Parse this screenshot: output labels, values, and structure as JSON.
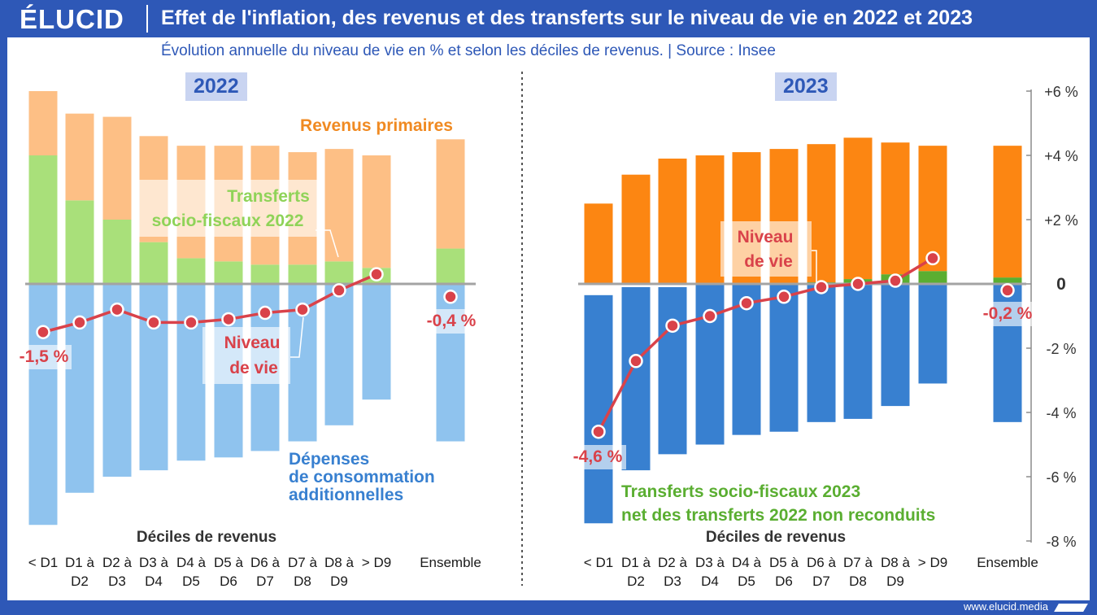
{
  "header": {
    "logo": "ÉLUCID",
    "title": "Effet de l'inflation, des revenus et des transferts sur le niveau de vie en 2022 et 2023",
    "subtitle": "Évolution annuelle du niveau de vie en % et selon les déciles de revenus.  |  Source : Insee",
    "footer_url": "www.elucid.media"
  },
  "colors": {
    "brand": "#2e58b7",
    "primary_2022": "#fdbf85",
    "transfers_2022": "#a9e07a",
    "consumption_2022": "#8fc3ee",
    "primary_2023": "#fc8612",
    "transfers_2023": "#5aae31",
    "consumption_2023": "#3880d0",
    "niveau_de_vie": "#d9424a"
  },
  "chart_data": [
    {
      "type": "bar",
      "year_label": "2022",
      "stacked": true,
      "categories": [
        [
          "< D1",
          ""
        ],
        [
          "D1 à",
          "D2"
        ],
        [
          "D2 à",
          "D3"
        ],
        [
          "D3 à",
          "D4"
        ],
        [
          "D4 à",
          "D5"
        ],
        [
          "D5 à",
          "D6"
        ],
        [
          "D6 à",
          "D7"
        ],
        [
          "D7 à",
          "D8"
        ],
        [
          "D8 à",
          "D9"
        ],
        [
          "> D9",
          ""
        ],
        [
          "Ensemble",
          ""
        ]
      ],
      "xlabel": "Déciles de revenus",
      "ylim": [
        -8,
        6
      ],
      "series": [
        {
          "name": "Revenus primaires",
          "values": [
            2.0,
            2.7,
            3.2,
            3.3,
            3.5,
            3.6,
            3.7,
            3.5,
            3.5,
            3.5,
            3.4
          ]
        },
        {
          "name": "Transferts socio-fiscaux 2022",
          "values": [
            4.0,
            2.6,
            2.0,
            1.3,
            0.8,
            0.7,
            0.6,
            0.6,
            0.7,
            0.5,
            1.1
          ]
        },
        {
          "name": "Dépenses de consommation additionnelles",
          "values": [
            -7.5,
            -6.5,
            -6.0,
            -5.8,
            -5.5,
            -5.4,
            -5.2,
            -4.9,
            -4.4,
            -3.6,
            -4.9
          ]
        },
        {
          "name": "Niveau de vie",
          "type": "line",
          "values": [
            -1.5,
            -1.2,
            -0.8,
            -1.2,
            -1.2,
            -1.1,
            -0.9,
            -0.8,
            -0.2,
            0.3,
            -0.4
          ]
        }
      ],
      "data_labels": [
        {
          "index": 0,
          "text": "-1,5 %"
        },
        {
          "index": 10,
          "text": "-0,4 %"
        }
      ],
      "annotations": {
        "primary": "Revenus primaires",
        "transfers": [
          "Transferts",
          "socio-fiscaux 2022"
        ],
        "niveau": [
          "Niveau",
          "de vie"
        ],
        "consumption": [
          "Dépenses",
          "de consommation",
          "additionnelles"
        ]
      }
    },
    {
      "type": "bar",
      "year_label": "2023",
      "stacked": true,
      "categories": [
        [
          "< D1",
          ""
        ],
        [
          "D1 à",
          "D2"
        ],
        [
          "D2 à",
          "D3"
        ],
        [
          "D3 à",
          "D4"
        ],
        [
          "D4 à",
          "D5"
        ],
        [
          "D5 à",
          "D6"
        ],
        [
          "D6 à",
          "D7"
        ],
        [
          "D7 à",
          "D8"
        ],
        [
          "D8 à",
          "D9"
        ],
        [
          "> D9",
          ""
        ],
        [
          "Ensemble",
          ""
        ]
      ],
      "xlabel": "Déciles de revenus",
      "ylim": [
        -8,
        6
      ],
      "yticks": [
        {
          "v": 6,
          "label": "+6 %"
        },
        {
          "v": 4,
          "label": "+4 %"
        },
        {
          "v": 2,
          "label": "+2 %"
        },
        {
          "v": 0,
          "label": "0"
        },
        {
          "v": -2,
          "label": "-2 %"
        },
        {
          "v": -4,
          "label": "-4 %"
        },
        {
          "v": -6,
          "label": "-6 %"
        },
        {
          "v": -8,
          "label": "-8 %"
        }
      ],
      "series": [
        {
          "name": "Revenus primaires",
          "values": [
            2.5,
            3.4,
            3.9,
            4.0,
            4.1,
            4.2,
            4.3,
            4.4,
            4.1,
            3.9,
            4.1
          ]
        },
        {
          "name": "Transferts socio-fiscaux 2023 net des transferts 2022 non reconduits",
          "values": [
            -0.35,
            -0.1,
            -0.1,
            0.0,
            0.0,
            0.0,
            0.05,
            0.15,
            0.3,
            0.4,
            0.2
          ]
        },
        {
          "name": "Dépenses de consommation additionnelles",
          "values": [
            -7.1,
            -5.7,
            -5.2,
            -5.0,
            -4.7,
            -4.6,
            -4.3,
            -4.2,
            -3.8,
            -3.1,
            -4.3
          ]
        },
        {
          "name": "Niveau de vie",
          "type": "line",
          "values": [
            -4.6,
            -2.4,
            -1.3,
            -1.0,
            -0.6,
            -0.4,
            -0.1,
            0.0,
            0.1,
            0.8,
            -0.2
          ]
        }
      ],
      "data_labels": [
        {
          "index": 0,
          "text": "-4,6 %"
        },
        {
          "index": 10,
          "text": "-0,2 %"
        }
      ],
      "annotations": {
        "niveau": [
          "Niveau",
          "de vie"
        ],
        "transfers": [
          "Transferts socio-fiscaux 2023",
          "net des transferts 2022 non reconduits"
        ]
      }
    }
  ]
}
